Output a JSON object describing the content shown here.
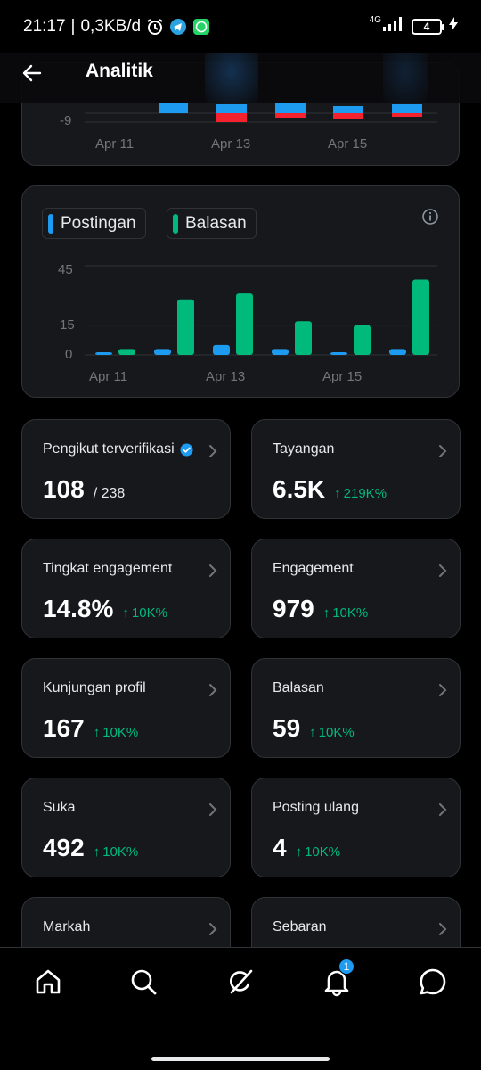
{
  "status_bar": {
    "time": "21:17",
    "speed": "0,3KB/d",
    "network": "4G",
    "battery": "4",
    "icons": [
      "alarm-icon",
      "telegram-icon",
      "whatsapp-icon",
      "signal-icon",
      "battery-icon",
      "charging-icon"
    ]
  },
  "header": {
    "title": "Analitik",
    "back_icon": "arrow-left-icon"
  },
  "top_chart": {
    "ytick": "-9",
    "x_labels": [
      "Apr 11",
      "Apr 13",
      "Apr 15"
    ],
    "colors": {
      "positive": "#1d9bf0",
      "negative": "#f4212e"
    }
  },
  "chart_data": {
    "type": "bar",
    "categories": [
      "Apr 11",
      "Apr 12",
      "Apr 13",
      "Apr 14",
      "Apr 15",
      "Apr 16"
    ],
    "series": [
      {
        "name": "Postingan",
        "color": "#1d9bf0",
        "values": [
          1,
          3,
          5,
          3,
          1,
          3
        ]
      },
      {
        "name": "Balasan",
        "color": "#00ba7c",
        "values": [
          3,
          28,
          31,
          17,
          15,
          38
        ]
      }
    ],
    "yticks": [
      "45",
      "15",
      "0"
    ],
    "xtick_labels": [
      "Apr 11",
      "Apr 13",
      "Apr 15"
    ],
    "ylim": [
      0,
      45
    ],
    "grid": true,
    "legend": "top-left"
  },
  "stats": [
    {
      "label": "Pengikut terverifikasi",
      "value": "108",
      "sub": "/ 238",
      "delta": "",
      "verified": true
    },
    {
      "label": "Tayangan",
      "value": "6.5K",
      "sub": "",
      "delta": "219K%"
    },
    {
      "label": "Tingkat engagement",
      "value": "14.8%",
      "sub": "",
      "delta": "10K%"
    },
    {
      "label": "Engagement",
      "value": "979",
      "sub": "",
      "delta": "10K%"
    },
    {
      "label": "Kunjungan profil",
      "value": "167",
      "sub": "",
      "delta": "10K%"
    },
    {
      "label": "Balasan",
      "value": "59",
      "sub": "",
      "delta": "10K%"
    },
    {
      "label": "Suka",
      "value": "492",
      "sub": "",
      "delta": "10K%"
    },
    {
      "label": "Posting ulang",
      "value": "4",
      "sub": "",
      "delta": "10K%"
    },
    {
      "label": "Markah",
      "value": "",
      "sub": "",
      "delta": ""
    },
    {
      "label": "Sebaran",
      "value": "",
      "sub": "",
      "delta": ""
    }
  ],
  "delta_arrow": "↑",
  "bottom_nav": {
    "items": [
      "home-icon",
      "search-icon",
      "grok-icon",
      "notifications-icon",
      "messages-icon"
    ],
    "notification_badge": "1"
  },
  "colors": {
    "accent": "#1d9bf0",
    "positive": "#00ba7c",
    "negative": "#f4212e",
    "card": "#16181c"
  }
}
